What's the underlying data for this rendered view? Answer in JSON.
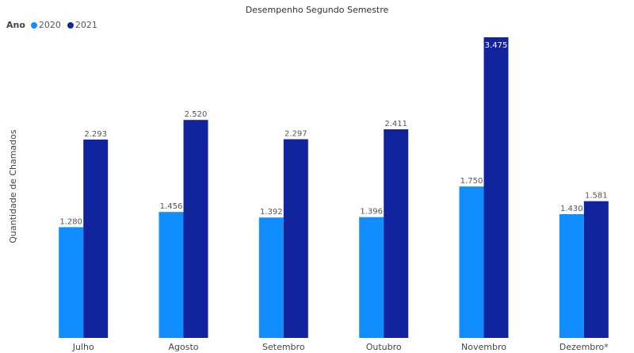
{
  "chart_data": {
    "type": "bar",
    "title": "Desempenho Segundo Semestre",
    "ylabel": "Quantidade de Chamados",
    "xlabel": "",
    "legend_title": "Ano",
    "legend_position": "top-left",
    "categories": [
      "Julho",
      "Agosto",
      "Setembro",
      "Outubro",
      "Novembro",
      "Dezembro*"
    ],
    "series": [
      {
        "name": "2020",
        "color": "#118dff",
        "values": [
          1280,
          1456,
          1392,
          1396,
          1750,
          1430
        ],
        "labels": [
          "1.280",
          "1.456",
          "1.392",
          "1.396",
          "1.750",
          "1.430"
        ]
      },
      {
        "name": "2021",
        "color": "#12239e",
        "values": [
          2293,
          2520,
          2297,
          2411,
          3475,
          1581
        ],
        "labels": [
          "2.293",
          "2.520",
          "2.297",
          "2.411",
          "3.475",
          "1.581"
        ]
      }
    ],
    "ylim": [
      0,
      3475
    ],
    "grid": false
  }
}
